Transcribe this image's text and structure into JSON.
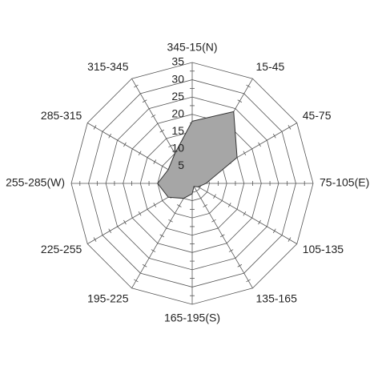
{
  "chart_data": {
    "type": "radar",
    "categories": [
      "345-15(N)",
      "15-45",
      "45-75",
      "75-105(E)",
      "105-135",
      "135-165",
      "165-195(S)",
      "195-225",
      "225-255",
      "255-285(W)",
      "285-315",
      "315-345"
    ],
    "values": [
      18,
      24,
      15,
      4,
      2,
      1,
      3,
      5,
      8,
      10,
      8,
      10
    ],
    "color": "#a6a6a6",
    "ylim": [
      0,
      35
    ],
    "yticks": [
      5,
      10,
      15,
      20,
      25,
      30,
      35
    ],
    "grid": true
  }
}
